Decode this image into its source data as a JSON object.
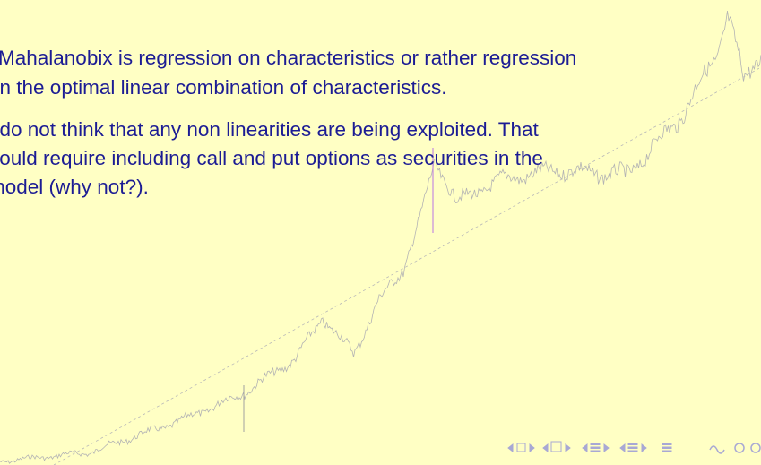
{
  "slide": {
    "paragraphs": [
      {
        "lines": [
          "Mahalanobix is regression on characteristics or rather regression",
          "on the optimal linear combination of characteristics."
        ]
      },
      {
        "lines": [
          "I do not think that any non linearities are being exploited. That",
          "would require including call and put options as securities in the",
          "model (why not?)."
        ]
      }
    ]
  }
}
